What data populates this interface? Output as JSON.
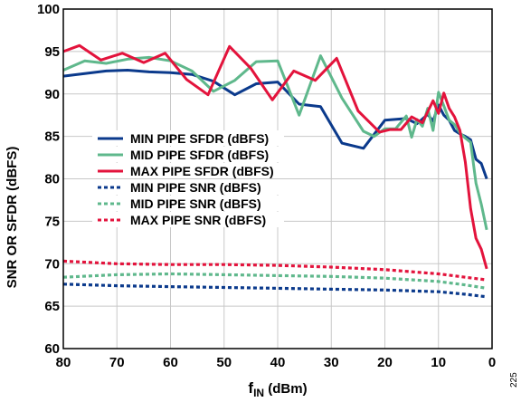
{
  "chart_data": {
    "type": "line",
    "xlabel": "f",
    "xlabel_sub": "IN",
    "xlabel_unit": " (dBm)",
    "ylabel": "SNR OR SFDR (dBFS)",
    "xlim": [
      80,
      0
    ],
    "ylim": [
      60,
      100
    ],
    "x_ticks": [
      80,
      70,
      60,
      50,
      40,
      30,
      20,
      10,
      0
    ],
    "y_ticks": [
      60,
      65,
      70,
      75,
      80,
      85,
      90,
      95,
      100
    ],
    "grid": true,
    "legend_position": "left",
    "figure_id": "225",
    "series": [
      {
        "name": "MIN PIPE SFDR (dBFS)",
        "color": "#0b3a8c",
        "style": "solid",
        "x": [
          80,
          76,
          72,
          68,
          64,
          60,
          56,
          52,
          48,
          44,
          40,
          36,
          32,
          28,
          24,
          20,
          16,
          14,
          12,
          11,
          10,
          9,
          8,
          7,
          6,
          5,
          4,
          3,
          2,
          1
        ],
        "y": [
          92.1,
          92.4,
          92.7,
          92.8,
          92.6,
          92.5,
          92.3,
          91.5,
          89.9,
          91.2,
          91.4,
          88.8,
          88.5,
          84.2,
          83.6,
          86.9,
          87.1,
          86.5,
          87.6,
          86.8,
          88.7,
          87.5,
          86.9,
          85.7,
          85.3,
          85.0,
          84.6,
          82.3,
          81.8,
          80.0
        ]
      },
      {
        "name": "MID PIPE SFDR (dBFS)",
        "color": "#5fb88c",
        "style": "solid",
        "x": [
          80,
          76,
          72,
          68,
          64,
          60,
          56,
          52,
          48,
          44,
          40,
          36,
          32,
          28,
          24,
          22,
          20,
          18,
          16,
          15,
          14,
          13,
          12,
          11,
          10,
          9,
          8,
          7,
          6,
          5,
          4,
          3,
          2,
          1
        ],
        "y": [
          92.8,
          93.9,
          93.6,
          94.1,
          94.3,
          93.9,
          92.7,
          90.3,
          91.6,
          93.8,
          93.9,
          87.5,
          94.5,
          89.5,
          85.6,
          85.0,
          85.9,
          85.9,
          87.4,
          84.9,
          87.0,
          86.2,
          88.3,
          85.7,
          90.2,
          88.6,
          86.9,
          86.4,
          85.4,
          84.8,
          84.3,
          79.5,
          77.0,
          74.0
        ]
      },
      {
        "name": "MAX PIPE SFDR (dBFS)",
        "color": "#e3133c",
        "style": "solid",
        "x": [
          80,
          77,
          73,
          69,
          65,
          61,
          57,
          53,
          49,
          45,
          41,
          37,
          33,
          29,
          25,
          21,
          19,
          17,
          15,
          13,
          12,
          11,
          10,
          9,
          8,
          7,
          6,
          5,
          4,
          3,
          2,
          1
        ],
        "y": [
          95.0,
          95.7,
          94.0,
          94.8,
          93.7,
          94.8,
          91.7,
          89.9,
          95.6,
          93.0,
          89.3,
          92.7,
          91.6,
          94.2,
          88.0,
          85.5,
          85.8,
          85.8,
          87.3,
          86.6,
          87.9,
          89.2,
          87.7,
          90.1,
          88.3,
          87.3,
          85.7,
          82.0,
          76.5,
          73.0,
          71.7,
          69.4
        ]
      },
      {
        "name": "MIN PIPE SNR (dBFS)",
        "color": "#0b3a8c",
        "style": "dashed",
        "x": [
          80,
          70,
          60,
          50,
          40,
          30,
          20,
          10,
          5,
          1
        ],
        "y": [
          67.6,
          67.4,
          67.3,
          67.2,
          67.1,
          67.0,
          66.9,
          66.7,
          66.4,
          66.1
        ]
      },
      {
        "name": "MID PIPE SNR (dBFS)",
        "color": "#5fb88c",
        "style": "dashed",
        "x": [
          80,
          70,
          60,
          50,
          40,
          30,
          20,
          10,
          5,
          1
        ],
        "y": [
          68.4,
          68.7,
          68.8,
          68.7,
          68.6,
          68.5,
          68.3,
          67.9,
          67.5,
          67.1
        ]
      },
      {
        "name": "MAX PIPE SNR (dBFS)",
        "color": "#e3133c",
        "style": "dashed",
        "x": [
          80,
          70,
          60,
          50,
          40,
          30,
          20,
          10,
          5,
          1
        ],
        "y": [
          70.3,
          70.0,
          69.9,
          69.9,
          69.8,
          69.6,
          69.3,
          68.8,
          68.4,
          68.1
        ]
      }
    ]
  }
}
